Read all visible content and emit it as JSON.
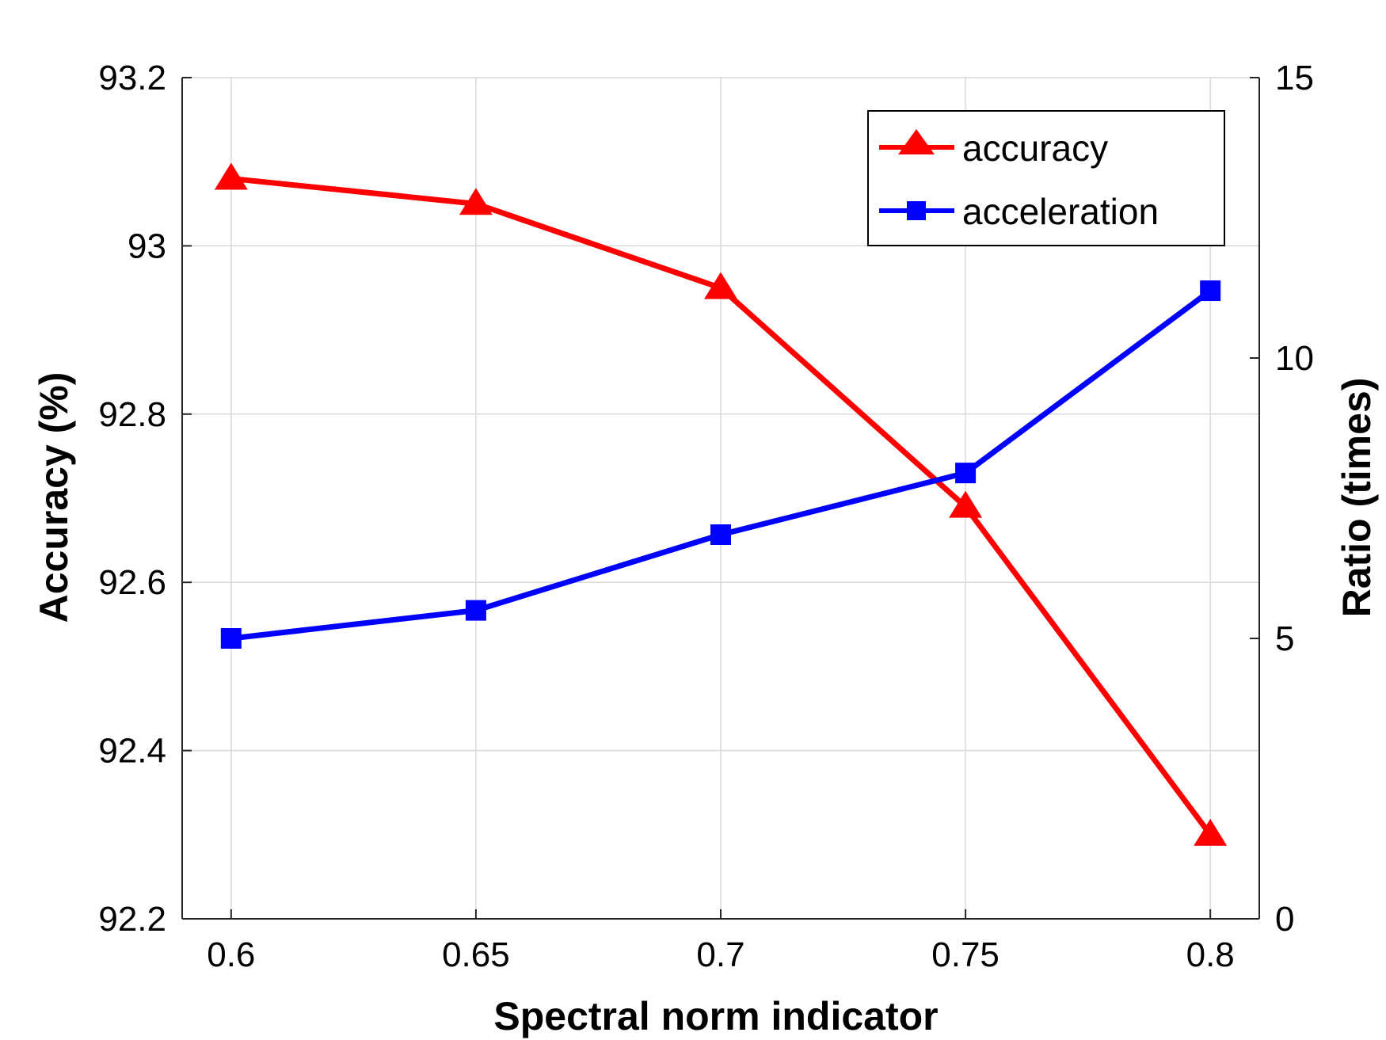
{
  "chart_data": {
    "type": "line",
    "title": "",
    "xlabel": "Spectral norm indicator",
    "ylabel_left": "Accuracy (%)",
    "ylabel_right": "Ratio (times)",
    "x": [
      0.6,
      0.65,
      0.7,
      0.75,
      0.8
    ],
    "x_tick_labels": [
      "0.6",
      "0.65",
      "0.7",
      "0.75",
      "0.8"
    ],
    "xlim": [
      0.59,
      0.81
    ],
    "ylim_left": [
      92.2,
      93.2
    ],
    "y_left_tick_labels": [
      "92.2",
      "92.4",
      "92.6",
      "92.8",
      "93",
      "93.2"
    ],
    "y_left_ticks": [
      92.2,
      92.4,
      92.6,
      92.8,
      93.0,
      93.2
    ],
    "ylim_right": [
      0,
      15
    ],
    "y_right_tick_labels": [
      "0",
      "5",
      "10",
      "15"
    ],
    "y_right_ticks": [
      0,
      5,
      10,
      15
    ],
    "grid": true,
    "legend_position": "top-right",
    "series": [
      {
        "name": "accuracy",
        "axis": "left",
        "marker": "triangle",
        "color": "#ff0000",
        "values": [
          93.08,
          93.05,
          92.95,
          92.69,
          92.3
        ]
      },
      {
        "name": "acceleration",
        "axis": "right",
        "marker": "square",
        "color": "#0000ff",
        "values": [
          5.0,
          5.5,
          6.85,
          7.95,
          11.2
        ]
      }
    ]
  }
}
